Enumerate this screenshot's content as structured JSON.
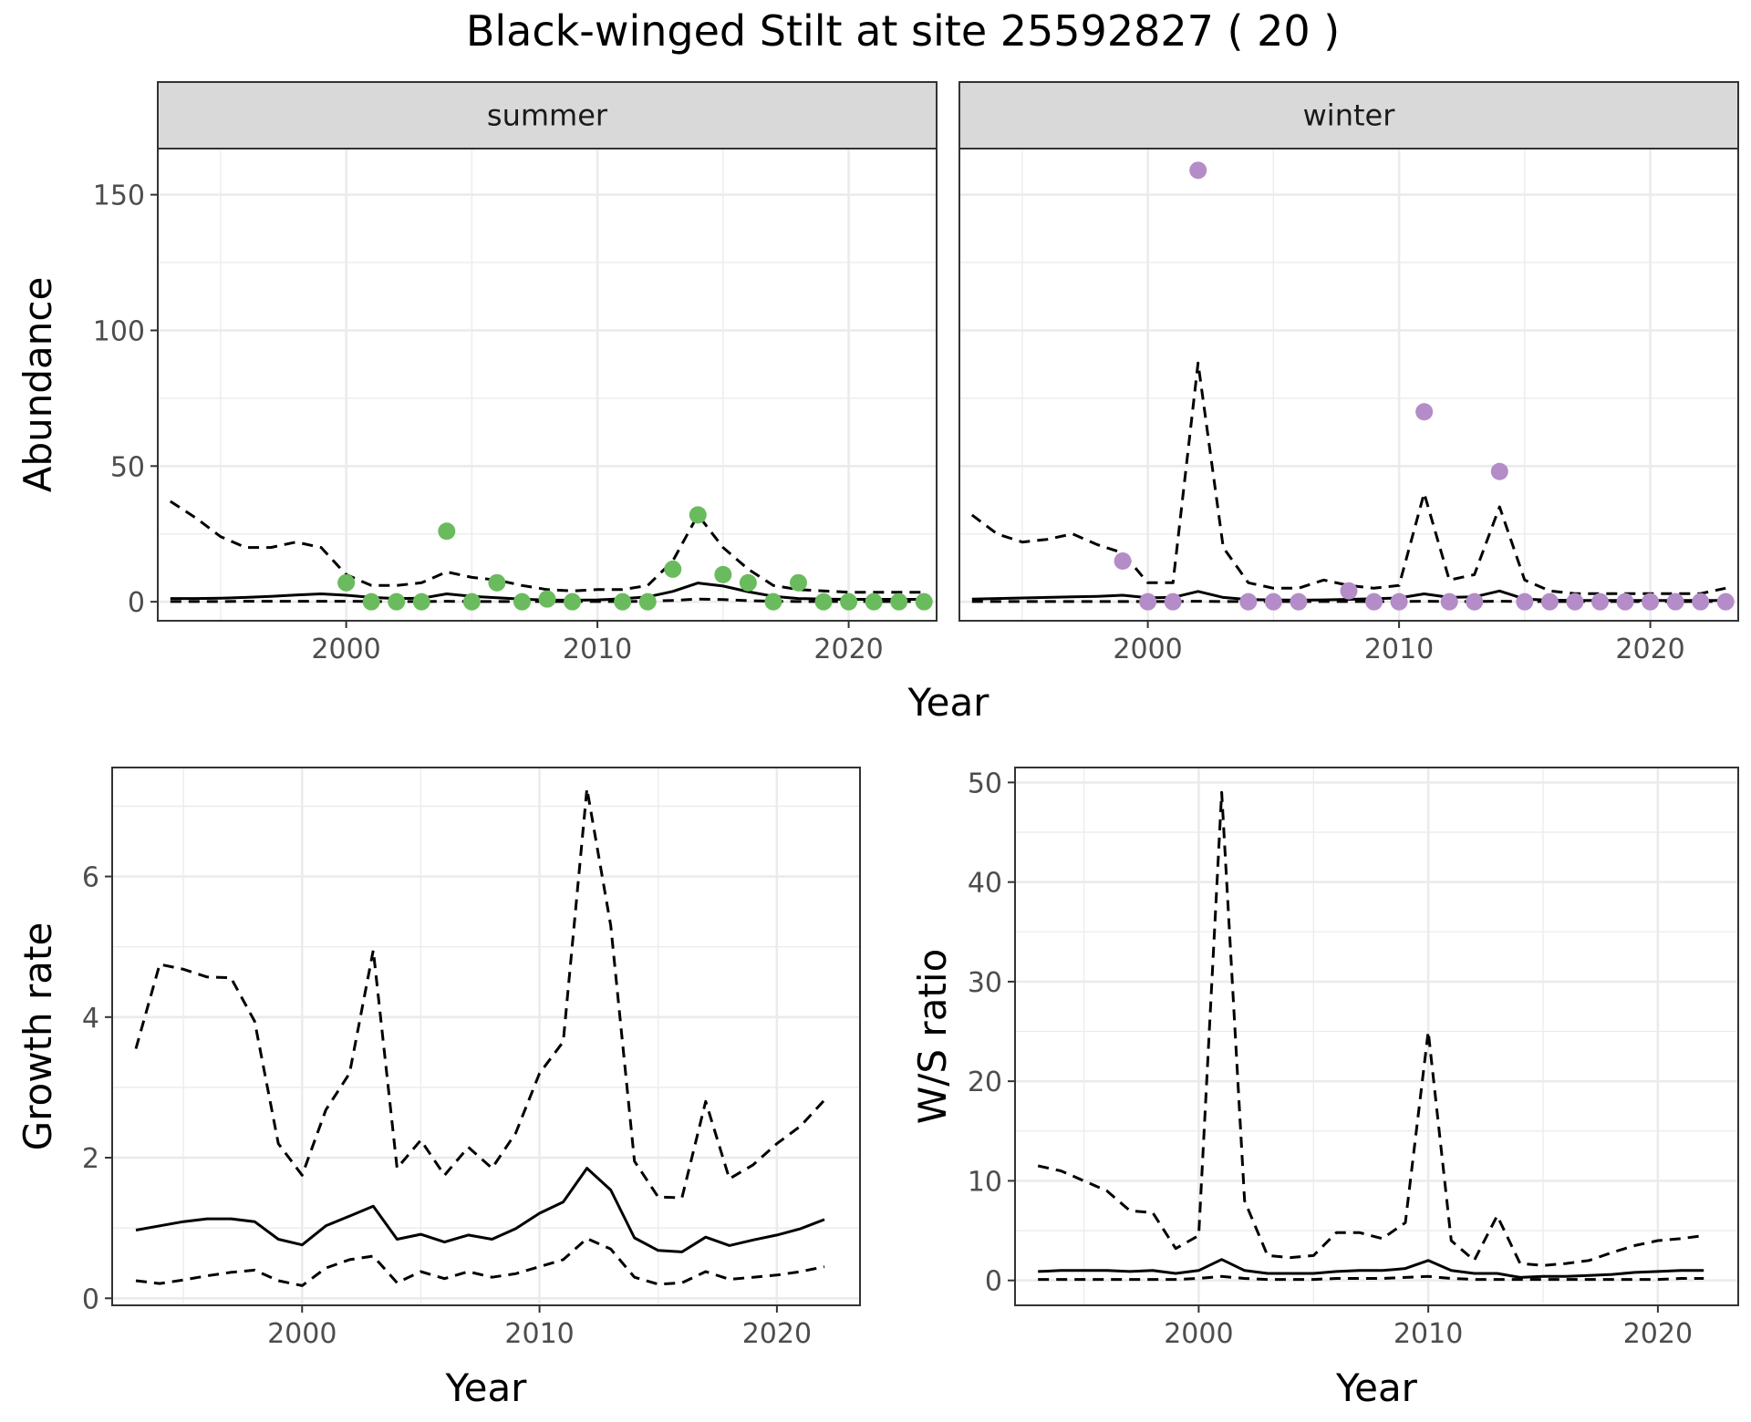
{
  "title": "Black-winged Stilt at site 25592827 ( 20 )",
  "colors": {
    "summer_points": "#6abb5d",
    "winter_points": "#b48cc8",
    "line": "#000000",
    "strip_fill": "#d9d9d9",
    "grid": "#ebebeb"
  },
  "chart_data": [
    {
      "type": "scatter",
      "panel": "summer",
      "strip_label": "summer",
      "xlabel": "Year",
      "ylabel": "Abundance",
      "xlim": [
        1992.5,
        2023.5
      ],
      "ylim": [
        -7,
        167
      ],
      "x_ticks": [
        2000,
        2010,
        2020
      ],
      "y_ticks": [
        0,
        50,
        100,
        150
      ],
      "grid": true,
      "point_color": "summer",
      "points": {
        "x": [
          2000,
          2001,
          2002,
          2003,
          2004,
          2005,
          2006,
          2007,
          2008,
          2009,
          2010,
          2011,
          2012,
          2013,
          2014,
          2015,
          2016,
          2017,
          2018,
          2019,
          2020,
          2021,
          2022,
          2023
        ],
        "y": [
          7,
          0,
          0,
          0,
          26,
          0,
          7,
          0,
          1,
          0,
          null,
          0,
          0,
          12,
          32,
          10,
          7,
          0,
          7,
          0,
          0,
          0,
          0,
          0
        ]
      },
      "lines": [
        {
          "role": "fit",
          "dash": "solid",
          "x": [
            1993,
            1994,
            1995,
            1996,
            1997,
            1998,
            1999,
            2000,
            2001,
            2002,
            2003,
            2004,
            2005,
            2006,
            2007,
            2008,
            2009,
            2010,
            2011,
            2012,
            2013,
            2014,
            2015,
            2016,
            2017,
            2018,
            2019,
            2020,
            2021,
            2022,
            2023
          ],
          "y": [
            1.2,
            1.2,
            1.3,
            1.6,
            2.0,
            2.5,
            2.9,
            2.4,
            1.6,
            1.2,
            1.3,
            2.9,
            2.0,
            1.5,
            1.0,
            0.6,
            0.6,
            0.7,
            1.1,
            1.8,
            3.8,
            6.9,
            5.8,
            3.7,
            2.0,
            1.2,
            1.0,
            0.9,
            0.9,
            0.9,
            0.9
          ]
        },
        {
          "role": "upper",
          "dash": "dashed",
          "x": [
            1993,
            1994,
            1995,
            1996,
            1997,
            1998,
            1999,
            2000,
            2001,
            2002,
            2003,
            2004,
            2005,
            2006,
            2007,
            2008,
            2009,
            2010,
            2011,
            2012,
            2013,
            2014,
            2015,
            2016,
            2017,
            2018,
            2019,
            2020,
            2021,
            2022,
            2023
          ],
          "y": [
            37,
            31,
            24,
            20,
            20,
            22,
            20,
            10,
            6,
            6,
            7,
            11,
            9,
            8,
            6,
            4.5,
            4,
            4.5,
            4.5,
            6,
            15,
            32,
            20,
            12,
            6,
            4.5,
            4,
            3.5,
            3.5,
            3.5,
            3.5
          ]
        },
        {
          "role": "lower",
          "dash": "dashed",
          "x": [
            1993,
            1994,
            1995,
            1996,
            1997,
            1998,
            1999,
            2000,
            2001,
            2002,
            2003,
            2004,
            2005,
            2006,
            2007,
            2008,
            2009,
            2010,
            2011,
            2012,
            2013,
            2014,
            2015,
            2016,
            2017,
            2018,
            2019,
            2020,
            2021,
            2022,
            2023
          ],
          "y": [
            0.1,
            0.1,
            0.1,
            0.2,
            0.2,
            0.2,
            0.2,
            0.2,
            0.1,
            0.1,
            0.1,
            0.2,
            0.1,
            0.1,
            0.1,
            0.1,
            0.1,
            0.1,
            0.1,
            0.2,
            0.5,
            1.0,
            0.8,
            0.4,
            0.2,
            0.1,
            0.1,
            0.1,
            0.1,
            0.1,
            0.1
          ]
        }
      ]
    },
    {
      "type": "scatter",
      "panel": "winter",
      "strip_label": "winter",
      "xlabel": "Year",
      "ylabel": "",
      "xlim": [
        1992.5,
        2023.5
      ],
      "ylim": [
        -7,
        167
      ],
      "x_ticks": [
        2000,
        2010,
        2020
      ],
      "y_ticks": [
        0,
        50,
        100,
        150
      ],
      "grid": true,
      "point_color": "winter",
      "points": {
        "x": [
          1999,
          2000,
          2001,
          2002,
          2004,
          2005,
          2006,
          2008,
          2009,
          2010,
          2011,
          2012,
          2013,
          2014,
          2015,
          2016,
          2017,
          2018,
          2019,
          2020,
          2021,
          2022,
          2023
        ],
        "y": [
          15,
          0,
          0,
          159,
          0,
          0,
          0,
          4,
          0,
          0,
          70,
          0,
          0,
          48,
          0,
          0,
          0,
          0,
          0,
          0,
          0,
          0,
          0
        ]
      },
      "lines": [
        {
          "role": "fit",
          "dash": "solid",
          "x": [
            1993,
            1994,
            1995,
            1996,
            1997,
            1998,
            1999,
            2000,
            2001,
            2002,
            2003,
            2004,
            2005,
            2006,
            2007,
            2008,
            2009,
            2010,
            2011,
            2012,
            2013,
            2014,
            2015,
            2016,
            2017,
            2018,
            2019,
            2020,
            2021,
            2022,
            2023
          ],
          "y": [
            1.0,
            1.2,
            1.4,
            1.6,
            1.8,
            2.0,
            2.4,
            1.5,
            1.6,
            3.8,
            1.6,
            0.8,
            0.7,
            0.6,
            0.7,
            0.9,
            1.1,
            1.4,
            2.9,
            1.6,
            1.8,
            4.0,
            1.0,
            0.6,
            0.5,
            0.5,
            0.5,
            0.5,
            0.5,
            0.5,
            0.5
          ]
        },
        {
          "role": "upper",
          "dash": "dashed",
          "x": [
            1993,
            1994,
            1995,
            1996,
            1997,
            1998,
            1999,
            2000,
            2001,
            2002,
            2003,
            2004,
            2005,
            2006,
            2007,
            2008,
            2009,
            2010,
            2011,
            2012,
            2013,
            2014,
            2015,
            2016,
            2017,
            2018,
            2019,
            2020,
            2021,
            2022,
            2023
          ],
          "y": [
            32,
            25,
            22,
            23,
            25,
            21,
            18,
            7,
            7,
            88,
            20,
            7,
            5,
            5,
            8,
            6,
            5,
            6,
            40,
            8,
            10,
            35,
            8,
            4,
            3,
            3,
            3,
            3,
            3,
            3,
            5
          ]
        },
        {
          "role": "lower",
          "dash": "dashed",
          "x": [
            1993,
            1994,
            1995,
            1996,
            1997,
            1998,
            1999,
            2000,
            2001,
            2002,
            2003,
            2004,
            2005,
            2006,
            2007,
            2008,
            2009,
            2010,
            2011,
            2012,
            2013,
            2014,
            2015,
            2016,
            2017,
            2018,
            2019,
            2020,
            2021,
            2022,
            2023
          ],
          "y": [
            0.1,
            0.1,
            0.1,
            0.1,
            0.1,
            0.1,
            0.1,
            0.1,
            0.1,
            0.2,
            0.1,
            0.1,
            0.1,
            0.1,
            0.1,
            0.1,
            0.1,
            0.1,
            0.2,
            0.1,
            0.1,
            0.2,
            0.1,
            0.1,
            0.1,
            0.1,
            0.1,
            0.1,
            0.1,
            0.1,
            0.1
          ]
        }
      ]
    },
    {
      "type": "line",
      "panel": "growth",
      "xlabel": "Year",
      "ylabel": "Growth rate",
      "xlim": [
        1992.0,
        2023.5
      ],
      "ylim": [
        -0.1,
        7.55
      ],
      "x_ticks": [
        2000,
        2010,
        2020
      ],
      "y_ticks": [
        0,
        2,
        4,
        6
      ],
      "grid": true,
      "lines": [
        {
          "role": "fit",
          "dash": "solid",
          "x": [
            1993,
            1994,
            1995,
            1996,
            1997,
            1998,
            1999,
            2000,
            2001,
            2002,
            2003,
            2004,
            2005,
            2006,
            2007,
            2008,
            2009,
            2010,
            2011,
            2012,
            2013,
            2014,
            2015,
            2016,
            2017,
            2018,
            2019,
            2020,
            2021,
            2022
          ],
          "y": [
            0.97,
            1.03,
            1.09,
            1.13,
            1.13,
            1.09,
            0.84,
            0.76,
            1.03,
            1.17,
            1.31,
            0.84,
            0.91,
            0.8,
            0.9,
            0.84,
            0.99,
            1.21,
            1.37,
            1.85,
            1.54,
            0.86,
            0.68,
            0.66,
            0.87,
            0.75,
            0.83,
            0.9,
            0.99,
            1.12
          ]
        },
        {
          "role": "upper",
          "dash": "dashed",
          "x": [
            1993,
            1994,
            1995,
            1996,
            1997,
            1998,
            1999,
            2000,
            2001,
            2002,
            2003,
            2004,
            2005,
            2006,
            2007,
            2008,
            2009,
            2010,
            2011,
            2012,
            2013,
            2014,
            2015,
            2016,
            2017,
            2018,
            2019,
            2020,
            2021,
            2022
          ],
          "y": [
            3.55,
            4.75,
            4.68,
            4.57,
            4.56,
            3.94,
            2.2,
            1.75,
            2.68,
            3.2,
            4.95,
            1.85,
            2.25,
            1.75,
            2.15,
            1.85,
            2.35,
            3.2,
            3.65,
            7.25,
            5.3,
            1.95,
            1.44,
            1.43,
            2.8,
            1.7,
            1.9,
            2.2,
            2.45,
            2.82
          ]
        },
        {
          "role": "lower",
          "dash": "dashed",
          "x": [
            1993,
            1994,
            1995,
            1996,
            1997,
            1998,
            1999,
            2000,
            2001,
            2002,
            2003,
            2004,
            2005,
            2006,
            2007,
            2008,
            2009,
            2010,
            2011,
            2012,
            2013,
            2014,
            2015,
            2016,
            2017,
            2018,
            2019,
            2020,
            2021,
            2022
          ],
          "y": [
            0.25,
            0.21,
            0.26,
            0.32,
            0.37,
            0.4,
            0.25,
            0.18,
            0.43,
            0.55,
            0.6,
            0.22,
            0.38,
            0.28,
            0.38,
            0.3,
            0.35,
            0.45,
            0.55,
            0.85,
            0.7,
            0.3,
            0.2,
            0.22,
            0.38,
            0.27,
            0.3,
            0.33,
            0.38,
            0.45
          ]
        }
      ]
    },
    {
      "type": "line",
      "panel": "ratio",
      "xlabel": "Year",
      "ylabel": "W/S ratio",
      "xlim": [
        1992.0,
        2023.5
      ],
      "ylim": [
        -2.5,
        51.5
      ],
      "x_ticks": [
        2000,
        2010,
        2020
      ],
      "y_ticks": [
        0,
        10,
        20,
        30,
        40,
        50
      ],
      "grid": true,
      "lines": [
        {
          "role": "fit",
          "dash": "solid",
          "x": [
            1993,
            1994,
            1995,
            1996,
            1997,
            1998,
            1999,
            2000,
            2001,
            2002,
            2003,
            2004,
            2005,
            2006,
            2007,
            2008,
            2009,
            2010,
            2011,
            2012,
            2013,
            2014,
            2015,
            2016,
            2017,
            2018,
            2019,
            2020,
            2021,
            2022
          ],
          "y": [
            0.9,
            1.0,
            1.0,
            1.0,
            0.9,
            1.0,
            0.7,
            1.0,
            2.1,
            1.0,
            0.7,
            0.7,
            0.7,
            0.9,
            1.0,
            1.0,
            1.2,
            2.0,
            1.0,
            0.7,
            0.7,
            0.3,
            0.4,
            0.4,
            0.5,
            0.6,
            0.8,
            0.9,
            1.0,
            1.0
          ]
        },
        {
          "role": "upper",
          "dash": "dashed",
          "x": [
            1993,
            1994,
            1995,
            1996,
            1997,
            1998,
            1999,
            2000,
            2001,
            2002,
            2003,
            2004,
            2005,
            2006,
            2007,
            2008,
            2009,
            2010,
            2011,
            2012,
            2013,
            2014,
            2015,
            2016,
            2017,
            2018,
            2019,
            2020,
            2021,
            2022
          ],
          "y": [
            11.5,
            11,
            10,
            9,
            7,
            6.8,
            3.2,
            4.5,
            49,
            8,
            2.5,
            2.3,
            2.5,
            4.8,
            4.8,
            4.2,
            5.8,
            25,
            4,
            2,
            6.5,
            1.7,
            1.5,
            1.7,
            2,
            2.8,
            3.5,
            4,
            4.2,
            4.5
          ]
        },
        {
          "role": "lower",
          "dash": "dashed",
          "x": [
            1993,
            1994,
            1995,
            1996,
            1997,
            1998,
            1999,
            2000,
            2001,
            2002,
            2003,
            2004,
            2005,
            2006,
            2007,
            2008,
            2009,
            2010,
            2011,
            2012,
            2013,
            2014,
            2015,
            2016,
            2017,
            2018,
            2019,
            2020,
            2021,
            2022
          ],
          "y": [
            0.1,
            0.1,
            0.1,
            0.1,
            0.1,
            0.1,
            0.1,
            0.2,
            0.4,
            0.2,
            0.1,
            0.1,
            0.1,
            0.2,
            0.2,
            0.2,
            0.3,
            0.4,
            0.2,
            0.1,
            0.1,
            0.1,
            0.1,
            0.1,
            0.1,
            0.1,
            0.1,
            0.1,
            0.2,
            0.2
          ]
        }
      ]
    }
  ]
}
